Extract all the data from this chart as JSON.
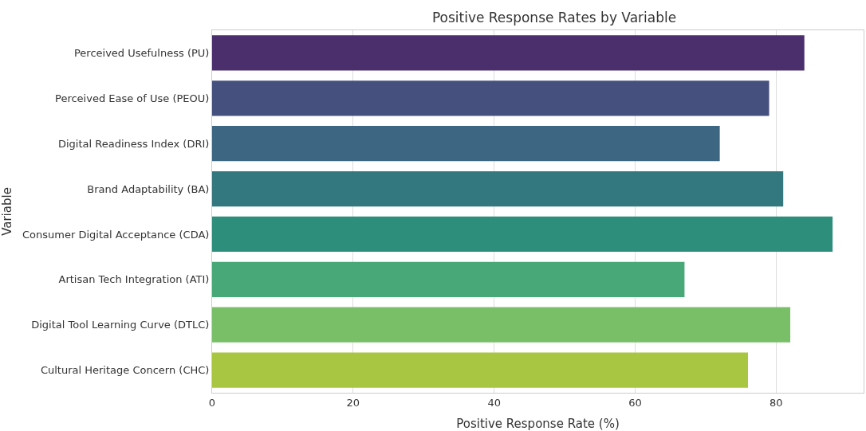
{
  "chart_data": {
    "type": "bar",
    "orientation": "horizontal",
    "title": "Positive Response Rates by Variable",
    "xlabel": "Positive Response Rate (%)",
    "ylabel": "Variable",
    "categories": [
      "Perceived Usefulness (PU)",
      "Perceived Ease of Use (PEOU)",
      "Digital Readiness Index (DRI)",
      "Brand Adaptability (BA)",
      "Consumer Digital Acceptance (CDA)",
      "Artisan Tech Integration (ATI)",
      "Digital Tool Learning Curve (DTLC)",
      "Cultural Heritage Concern (CHC)"
    ],
    "values": [
      84,
      79,
      72,
      81,
      88,
      67,
      82,
      76
    ],
    "colors": [
      "#4b2f6d",
      "#46507e",
      "#3c6682",
      "#33777f",
      "#2d8e7b",
      "#48a877",
      "#79bf68",
      "#a8c641"
    ],
    "xlim": [
      0,
      92.4
    ],
    "xticks": [
      0,
      20,
      40,
      60,
      80
    ],
    "grid": "x"
  }
}
